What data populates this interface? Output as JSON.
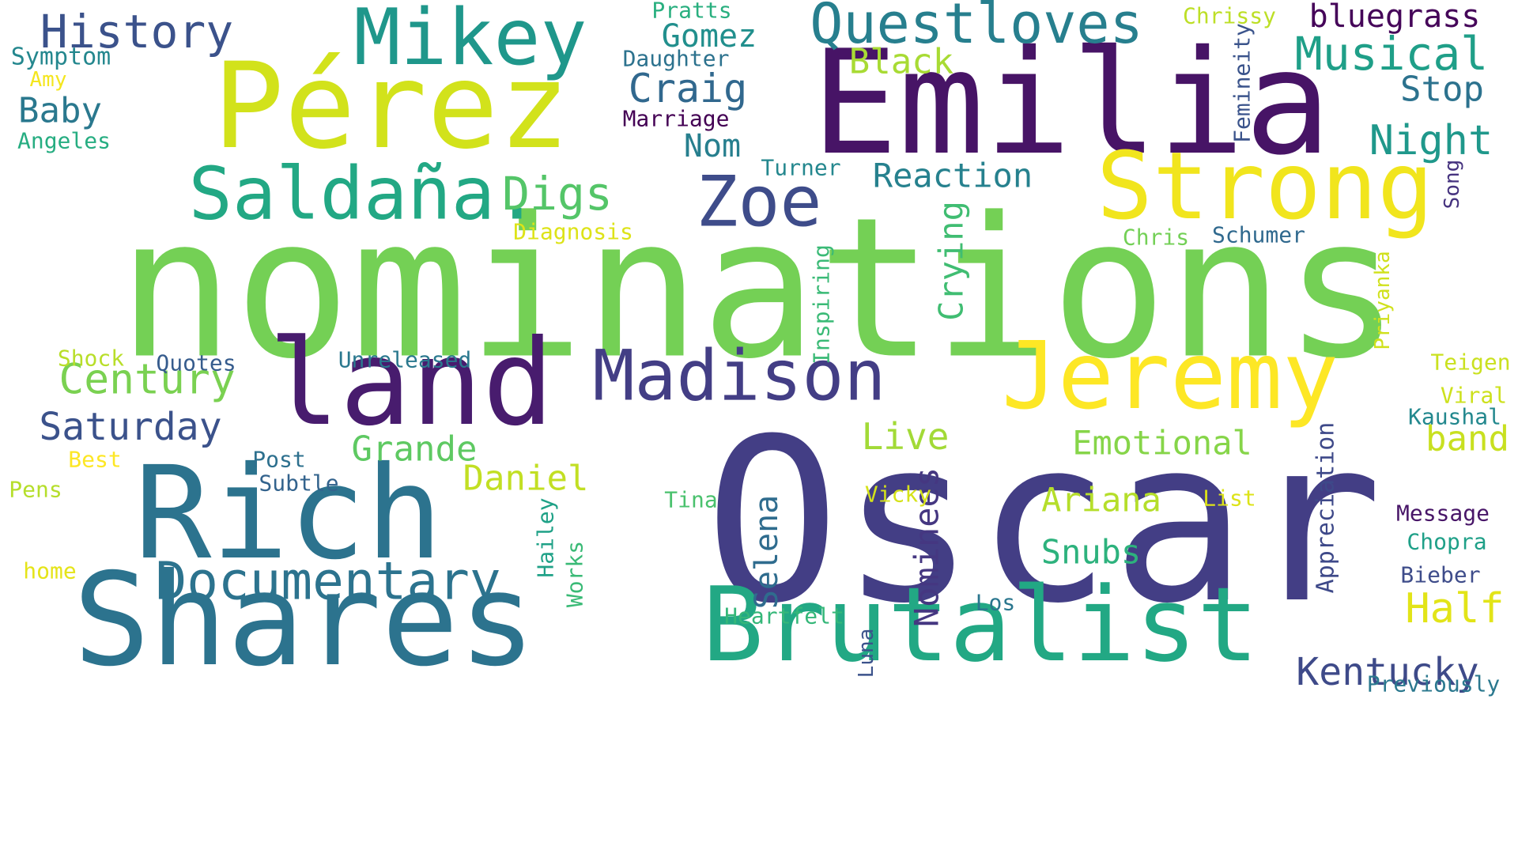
{
  "words": [
    {
      "text": "nominations",
      "color": "#74d055",
      "rot": 0
    },
    {
      "text": "Oscar",
      "color": "#433e85",
      "rot": 0
    },
    {
      "text": "Emilia",
      "color": "#471466",
      "rot": 0
    },
    {
      "text": "Pérez",
      "color": "#d2e21b",
      "rot": 0
    },
    {
      "text": "Shares",
      "color": "#2c738e",
      "rot": 0
    },
    {
      "text": "Rich",
      "color": "#2c738e",
      "rot": 0
    },
    {
      "text": "Brutalist",
      "color": "#22a884",
      "rot": 0
    },
    {
      "text": "Strong",
      "color": "#f1e51d",
      "rot": 0
    },
    {
      "text": "Jeremy",
      "color": "#fde725",
      "rot": 0
    },
    {
      "text": "land",
      "color": "#481c6e",
      "rot": 0
    },
    {
      "text": "Saldaña.",
      "color": "#22a884",
      "rot": 0
    },
    {
      "text": "Mikey",
      "color": "#1f978b",
      "rot": 0
    },
    {
      "text": "Zoe",
      "color": "#3e4c8a",
      "rot": 0
    },
    {
      "text": "Madison",
      "color": "#433e85",
      "rot": 0
    },
    {
      "text": "Questloves",
      "color": "#277f8e",
      "rot": 0
    },
    {
      "text": "Documentary",
      "color": "#2c738e",
      "rot": 0
    },
    {
      "text": "Musical",
      "color": "#1f9f88",
      "rot": 0
    },
    {
      "text": "History",
      "color": "#3b528b",
      "rot": 0
    },
    {
      "text": "Century",
      "color": "#7ad151",
      "rot": 0
    },
    {
      "text": "Saturday",
      "color": "#3b528b",
      "rot": 0
    },
    {
      "text": "Night",
      "color": "#1f988b",
      "rot": 0
    },
    {
      "text": "Half",
      "color": "#e2e418",
      "rot": 0
    },
    {
      "text": "Kentucky",
      "color": "#3e4a89",
      "rot": 0
    },
    {
      "text": "Emotional",
      "color": "#86d549",
      "rot": 0
    },
    {
      "text": "Reaction",
      "color": "#26818e",
      "rot": 0
    },
    {
      "text": "Ariana",
      "color": "#b5de2b",
      "rot": 0
    },
    {
      "text": "Snubs",
      "color": "#2db27d",
      "rot": 0
    },
    {
      "text": "Live",
      "color": "#a2da37",
      "rot": 0
    },
    {
      "text": "Grande",
      "color": "#5ec962",
      "rot": 0
    },
    {
      "text": "Daniel",
      "color": "#c2df23",
      "rot": 0
    },
    {
      "text": "Digs",
      "color": "#54c568",
      "rot": 0
    },
    {
      "text": "Craig",
      "color": "#31688e",
      "rot": 0
    },
    {
      "text": "Gomez",
      "color": "#218f8d",
      "rot": 0
    },
    {
      "text": "Black",
      "color": "#a8db34",
      "rot": 0
    },
    {
      "text": "Baby",
      "color": "#2a788e",
      "rot": 0
    },
    {
      "text": "Stop",
      "color": "#2c728e",
      "rot": 0
    },
    {
      "text": "band",
      "color": "#c8e020",
      "rot": 0
    },
    {
      "text": "bluegrass",
      "color": "#450559",
      "rot": 0
    },
    {
      "text": "Nom",
      "color": "#277f8e",
      "rot": 0
    },
    {
      "text": "Crying",
      "color": "#40bd72",
      "rot": -90
    },
    {
      "text": "Nominees",
      "color": "#453781",
      "rot": -90
    },
    {
      "text": "Selena",
      "color": "#2f6c8e",
      "rot": -90
    },
    {
      "text": "Appreciation",
      "color": "#3e4989",
      "rot": -90
    },
    {
      "text": "Inspiring",
      "color": "#3aba76",
      "rot": -90
    },
    {
      "text": "Femineity",
      "color": "#3a538b",
      "rot": -90
    },
    {
      "text": "Priyanka",
      "color": "#d0e11c",
      "rot": -90
    },
    {
      "text": "Hailey",
      "color": "#1fa187",
      "rot": -90
    },
    {
      "text": "Works",
      "color": "#3aba76",
      "rot": -90
    },
    {
      "text": "Luna",
      "color": "#3b528b",
      "rot": -90
    },
    {
      "text": "Song",
      "color": "#46337f",
      "rot": -90
    },
    {
      "text": "Symptom",
      "color": "#24878e",
      "rot": 0
    },
    {
      "text": "Amy",
      "color": "#f4e61e",
      "rot": 0
    },
    {
      "text": "Angeles",
      "color": "#26ad81",
      "rot": 0
    },
    {
      "text": "Pratts",
      "color": "#29af7f",
      "rot": 0
    },
    {
      "text": "Daughter",
      "color": "#2c728e",
      "rot": 0
    },
    {
      "text": "Marriage",
      "color": "#440154",
      "rot": 0
    },
    {
      "text": "Chrissy",
      "color": "#bddf26",
      "rot": 0
    },
    {
      "text": "Turner",
      "color": "#24878e",
      "rot": 0
    },
    {
      "text": "Diagnosis",
      "color": "#dde318",
      "rot": 0
    },
    {
      "text": "Chris",
      "color": "#73d056",
      "rot": 0
    },
    {
      "text": "Schumer",
      "color": "#30698e",
      "rot": 0
    },
    {
      "text": "Shock",
      "color": "#b8de29",
      "rot": 0
    },
    {
      "text": "Quotes",
      "color": "#365c8d",
      "rot": 0
    },
    {
      "text": "Unreleased",
      "color": "#2a788e",
      "rot": 0
    },
    {
      "text": "Teigen",
      "color": "#cae11f",
      "rot": 0
    },
    {
      "text": "Viral",
      "color": "#cde11d",
      "rot": 0
    },
    {
      "text": "Kaushal",
      "color": "#23888e",
      "rot": 0
    },
    {
      "text": "Best",
      "color": "#fde725",
      "rot": 0
    },
    {
      "text": "Post",
      "color": "#2d708e",
      "rot": 0
    },
    {
      "text": "Subtle",
      "color": "#33638d",
      "rot": 0
    },
    {
      "text": "Pens",
      "color": "#b5de2b",
      "rot": 0
    },
    {
      "text": "Tina",
      "color": "#4ac16d",
      "rot": 0
    },
    {
      "text": "Vicky",
      "color": "#d5e21a",
      "rot": 0
    },
    {
      "text": "List",
      "color": "#dde318",
      "rot": 0
    },
    {
      "text": "Message",
      "color": "#481668",
      "rot": 0
    },
    {
      "text": "Chopra",
      "color": "#1fa088",
      "rot": 0
    },
    {
      "text": "Bieber",
      "color": "#3e4c8a",
      "rot": 0
    },
    {
      "text": "home",
      "color": "#e5e419",
      "rot": 0
    },
    {
      "text": "Heartfelt",
      "color": "#35b779",
      "rot": 0
    },
    {
      "text": "Los",
      "color": "#2a768e",
      "rot": 0
    },
    {
      "text": "Previously",
      "color": "#2a788e",
      "rot": 0
    }
  ]
}
